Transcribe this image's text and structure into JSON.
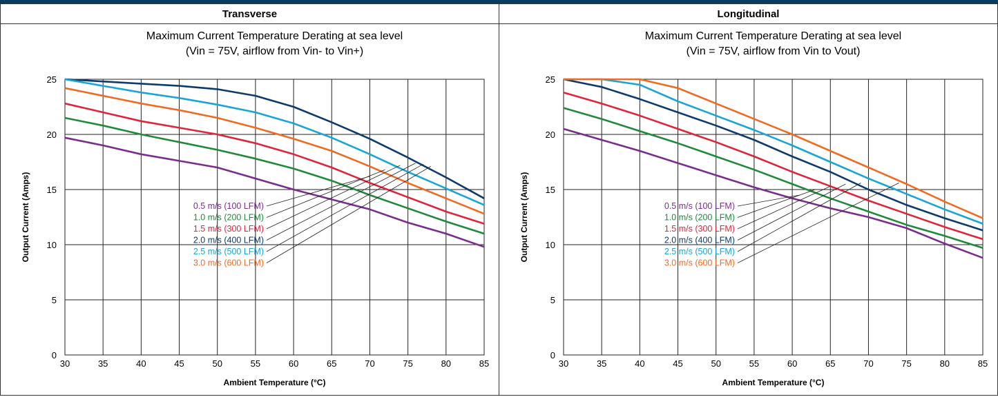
{
  "chart_data": [
    {
      "type": "line",
      "header": "Transverse",
      "title": "Maximum Current Temperature Derating at sea level",
      "subtitle": "(Vin = 75V, airflow from Vin- to Vin+)",
      "xlabel": "Ambient Temperature (°C)",
      "ylabel": "Output Current (Amps)",
      "xlim": [
        30,
        85
      ],
      "ylim": [
        0,
        25
      ],
      "xticks": [
        "30",
        "35",
        "40",
        "45",
        "50",
        "55",
        "60",
        "65",
        "70",
        "75",
        "80",
        "85"
      ],
      "yticks": [
        "0",
        "5",
        "10",
        "15",
        "20",
        "25"
      ],
      "grid": true,
      "legend_position": "center-left",
      "series": [
        {
          "name": "0.5 m/s (100 LFM)",
          "color": "#7b2d8e",
          "points": [
            [
              30,
              19.7
            ],
            [
              35,
              19.0
            ],
            [
              40,
              18.2
            ],
            [
              45,
              17.6
            ],
            [
              50,
              17.0
            ],
            [
              55,
              16.0
            ],
            [
              60,
              15.0
            ],
            [
              65,
              14.1
            ],
            [
              70,
              13.2
            ],
            [
              75,
              12.0
            ],
            [
              80,
              11.0
            ],
            [
              85,
              9.8
            ]
          ]
        },
        {
          "name": "1.0 m/s (200 LFM)",
          "color": "#1e8a3a",
          "points": [
            [
              30,
              21.5
            ],
            [
              35,
              20.8
            ],
            [
              40,
              20.0
            ],
            [
              45,
              19.3
            ],
            [
              50,
              18.6
            ],
            [
              55,
              17.8
            ],
            [
              60,
              16.9
            ],
            [
              65,
              15.8
            ],
            [
              70,
              14.5
            ],
            [
              75,
              13.3
            ],
            [
              80,
              12.1
            ],
            [
              85,
              11.0
            ]
          ]
        },
        {
          "name": "1.5 m/s (300 LFM)",
          "color": "#e0243c",
          "points": [
            [
              30,
              22.8
            ],
            [
              35,
              22.0
            ],
            [
              40,
              21.2
            ],
            [
              45,
              20.6
            ],
            [
              50,
              20.0
            ],
            [
              55,
              19.2
            ],
            [
              60,
              18.2
            ],
            [
              65,
              17.0
            ],
            [
              70,
              15.6
            ],
            [
              75,
              14.3
            ],
            [
              80,
              13.0
            ],
            [
              85,
              11.9
            ]
          ]
        },
        {
          "name": "2.0 m/s (400 LFM)",
          "color": "#0d3b6e",
          "points": [
            [
              30,
              25.0
            ],
            [
              35,
              24.8
            ],
            [
              40,
              24.6
            ],
            [
              45,
              24.4
            ],
            [
              50,
              24.1
            ],
            [
              55,
              23.5
            ],
            [
              60,
              22.5
            ],
            [
              65,
              21.1
            ],
            [
              70,
              19.6
            ],
            [
              75,
              17.9
            ],
            [
              80,
              16.1
            ],
            [
              85,
              14.2
            ]
          ]
        },
        {
          "name": "2.5 m/s (500 LFM)",
          "color": "#19a5d6",
          "points": [
            [
              30,
              25.0
            ],
            [
              35,
              24.4
            ],
            [
              40,
              23.8
            ],
            [
              45,
              23.3
            ],
            [
              50,
              22.7
            ],
            [
              55,
              22.0
            ],
            [
              60,
              21.0
            ],
            [
              65,
              19.7
            ],
            [
              70,
              18.2
            ],
            [
              75,
              16.6
            ],
            [
              80,
              15.1
            ],
            [
              85,
              13.6
            ]
          ]
        },
        {
          "name": "3.0 m/s (600 LFM)",
          "color": "#f06a22",
          "points": [
            [
              30,
              24.2
            ],
            [
              35,
              23.5
            ],
            [
              40,
              22.8
            ],
            [
              45,
              22.2
            ],
            [
              50,
              21.5
            ],
            [
              55,
              20.6
            ],
            [
              60,
              19.6
            ],
            [
              65,
              18.5
            ],
            [
              70,
              17.1
            ],
            [
              75,
              15.6
            ],
            [
              80,
              14.2
            ],
            [
              85,
              12.8
            ]
          ]
        }
      ]
    },
    {
      "type": "line",
      "header": "Longitudinal",
      "title": "Maximum Current Temperature Derating at sea level",
      "subtitle": "(Vin = 75V, airflow from Vin to Vout)",
      "xlabel": "Ambient Temperature (°C)",
      "ylabel": "Output Current (Amps)",
      "xlim": [
        30,
        85
      ],
      "ylim": [
        0,
        25
      ],
      "xticks": [
        "30",
        "35",
        "40",
        "45",
        "50",
        "55",
        "60",
        "65",
        "70",
        "75",
        "80",
        "85"
      ],
      "yticks": [
        "0",
        "5",
        "10",
        "15",
        "20",
        "25"
      ],
      "grid": true,
      "legend_position": "center-left",
      "series": [
        {
          "name": "0.5 m/s (100 LFM)",
          "color": "#7b2d8e",
          "points": [
            [
              30,
              20.5
            ],
            [
              35,
              19.5
            ],
            [
              40,
              18.5
            ],
            [
              45,
              17.4
            ],
            [
              50,
              16.3
            ],
            [
              55,
              15.2
            ],
            [
              60,
              14.2
            ],
            [
              65,
              13.3
            ],
            [
              70,
              12.5
            ],
            [
              75,
              11.5
            ],
            [
              80,
              10.1
            ],
            [
              85,
              8.8
            ]
          ]
        },
        {
          "name": "1.0 m/s (200 LFM)",
          "color": "#1e8a3a",
          "points": [
            [
              30,
              22.4
            ],
            [
              35,
              21.4
            ],
            [
              40,
              20.3
            ],
            [
              45,
              19.2
            ],
            [
              50,
              18.0
            ],
            [
              55,
              16.8
            ],
            [
              60,
              15.5
            ],
            [
              65,
              14.2
            ],
            [
              70,
              13.0
            ],
            [
              75,
              11.8
            ],
            [
              80,
              10.8
            ],
            [
              85,
              9.7
            ]
          ]
        },
        {
          "name": "1.5 m/s (300 LFM)",
          "color": "#e0243c",
          "points": [
            [
              30,
              23.8
            ],
            [
              35,
              22.8
            ],
            [
              40,
              21.7
            ],
            [
              45,
              20.5
            ],
            [
              50,
              19.3
            ],
            [
              55,
              18.0
            ],
            [
              60,
              16.6
            ],
            [
              65,
              15.3
            ],
            [
              70,
              14.0
            ],
            [
              75,
              12.8
            ],
            [
              80,
              11.6
            ],
            [
              85,
              10.5
            ]
          ]
        },
        {
          "name": "2.0 m/s (400 LFM)",
          "color": "#0d3b6e",
          "points": [
            [
              30,
              25.0
            ],
            [
              35,
              24.3
            ],
            [
              40,
              23.2
            ],
            [
              45,
              22.0
            ],
            [
              50,
              20.8
            ],
            [
              55,
              19.5
            ],
            [
              60,
              18.0
            ],
            [
              65,
              16.6
            ],
            [
              70,
              15.0
            ],
            [
              75,
              13.6
            ],
            [
              80,
              12.4
            ],
            [
              85,
              11.3
            ]
          ]
        },
        {
          "name": "2.5 m/s (500 LFM)",
          "color": "#19a5d6",
          "points": [
            [
              30,
              25.0
            ],
            [
              35,
              25.0
            ],
            [
              40,
              24.5
            ],
            [
              45,
              23.0
            ],
            [
              50,
              21.7
            ],
            [
              55,
              20.4
            ],
            [
              60,
              19.0
            ],
            [
              65,
              17.5
            ],
            [
              70,
              16.0
            ],
            [
              75,
              14.6
            ],
            [
              80,
              13.2
            ],
            [
              85,
              11.9
            ]
          ]
        },
        {
          "name": "3.0 m/s (600 LFM)",
          "color": "#f06a22",
          "points": [
            [
              30,
              25.0
            ],
            [
              35,
              25.0
            ],
            [
              40,
              25.0
            ],
            [
              45,
              24.2
            ],
            [
              50,
              22.8
            ],
            [
              55,
              21.4
            ],
            [
              60,
              20.0
            ],
            [
              65,
              18.5
            ],
            [
              70,
              17.0
            ],
            [
              75,
              15.5
            ],
            [
              80,
              13.9
            ],
            [
              85,
              12.4
            ]
          ]
        }
      ]
    }
  ]
}
